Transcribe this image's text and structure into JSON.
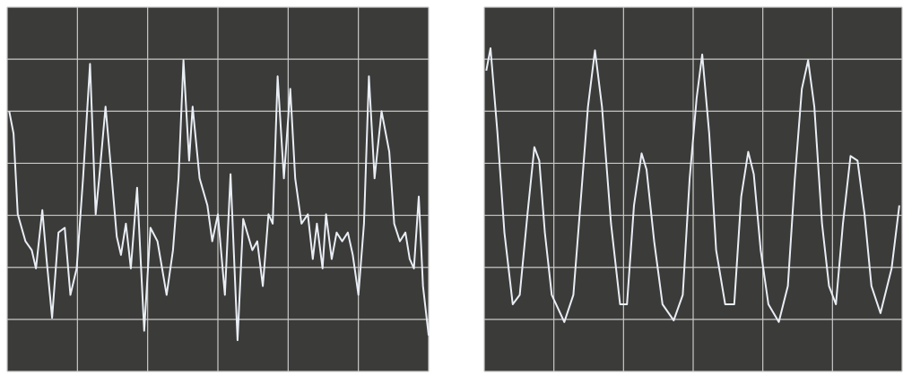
{
  "chart_data": [
    {
      "type": "line",
      "grid": true,
      "color": "#e9eef5",
      "background": "#3b3b39",
      "grid_color": "#c9c9c9",
      "xlim": [
        0,
        6
      ],
      "ylim": [
        0,
        7
      ],
      "xticks": [
        0,
        1,
        2,
        3,
        4,
        5,
        6
      ],
      "yticks": [
        0,
        1,
        2,
        3,
        4,
        5,
        6,
        7
      ],
      "x": [
        0.03,
        0.09,
        0.15,
        0.26,
        0.35,
        0.41,
        0.5,
        0.56,
        0.64,
        0.73,
        0.82,
        0.9,
        0.99,
        1.08,
        1.18,
        1.26,
        1.31,
        1.4,
        1.49,
        1.56,
        1.62,
        1.69,
        1.76,
        1.85,
        1.95,
        2.04,
        2.14,
        2.27,
        2.36,
        2.44,
        2.51,
        2.59,
        2.64,
        2.74,
        2.85,
        2.92,
        3.0,
        3.1,
        3.18,
        3.28,
        3.36,
        3.49,
        3.56,
        3.64,
        3.72,
        3.78,
        3.85,
        3.94,
        4.03,
        4.1,
        4.19,
        4.28,
        4.35,
        4.41,
        4.49,
        4.54,
        4.62,
        4.69,
        4.77,
        4.85,
        4.92,
        5.0,
        5.08,
        5.15,
        5.23,
        5.33,
        5.44,
        5.51,
        5.59,
        5.67,
        5.73,
        5.79,
        5.86,
        5.92,
        6.0
      ],
      "values": [
        5.0,
        4.57,
        3.02,
        2.5,
        2.33,
        1.98,
        3.1,
        2.16,
        1.03,
        2.67,
        2.76,
        1.47,
        1.98,
        3.71,
        5.91,
        3.02,
        3.71,
        5.09,
        3.71,
        2.59,
        2.24,
        2.84,
        1.98,
        3.53,
        0.78,
        2.76,
        2.5,
        1.47,
        2.33,
        3.71,
        5.98,
        4.05,
        5.09,
        3.71,
        3.19,
        2.5,
        3.02,
        1.47,
        3.79,
        0.6,
        2.93,
        2.33,
        2.5,
        1.64,
        3.02,
        2.84,
        5.67,
        3.71,
        5.43,
        3.71,
        2.84,
        3.02,
        2.16,
        2.84,
        1.98,
        3.02,
        2.16,
        2.67,
        2.5,
        2.67,
        2.24,
        1.47,
        2.84,
        5.67,
        3.71,
        5.0,
        4.22,
        2.84,
        2.5,
        2.67,
        2.16,
        1.98,
        3.36,
        1.64,
        0.69
      ]
    },
    {
      "type": "line",
      "grid": true,
      "color": "#e9eef5",
      "background": "#3b3b39",
      "grid_color": "#c9c9c9",
      "xlim": [
        0,
        6
      ],
      "ylim": [
        0,
        7
      ],
      "xticks": [
        0,
        1,
        2,
        3,
        4,
        5,
        6
      ],
      "yticks": [
        0,
        1,
        2,
        3,
        4,
        5,
        6,
        7
      ],
      "x": [
        0.03,
        0.09,
        0.19,
        0.29,
        0.41,
        0.51,
        0.62,
        0.72,
        0.79,
        0.87,
        0.97,
        1.15,
        1.28,
        1.38,
        1.49,
        1.59,
        1.69,
        1.82,
        1.95,
        2.05,
        2.15,
        2.26,
        2.33,
        2.44,
        2.56,
        2.72,
        2.85,
        2.95,
        3.05,
        3.13,
        3.23,
        3.33,
        3.46,
        3.59,
        3.69,
        3.79,
        3.87,
        3.97,
        4.08,
        4.23,
        4.36,
        4.46,
        4.56,
        4.65,
        4.74,
        4.85,
        4.95,
        5.05,
        5.15,
        5.26,
        5.36,
        5.46,
        5.56,
        5.69,
        5.85,
        5.96
      ],
      "values": [
        5.78,
        6.21,
        4.57,
        2.67,
        1.29,
        1.47,
        3.02,
        4.31,
        4.05,
        2.67,
        1.47,
        0.95,
        1.47,
        3.19,
        5.09,
        6.17,
        5.09,
        2.84,
        1.29,
        1.29,
        3.19,
        4.19,
        3.88,
        2.5,
        1.29,
        0.98,
        1.47,
        3.71,
        5.26,
        6.09,
        4.57,
        2.33,
        1.29,
        1.29,
        3.36,
        4.22,
        3.79,
        2.33,
        1.29,
        0.95,
        1.64,
        3.71,
        5.43,
        5.98,
        5.09,
        2.84,
        1.64,
        1.29,
        2.84,
        4.14,
        4.05,
        3.02,
        1.64,
        1.12,
        1.98,
        3.19
      ]
    }
  ]
}
